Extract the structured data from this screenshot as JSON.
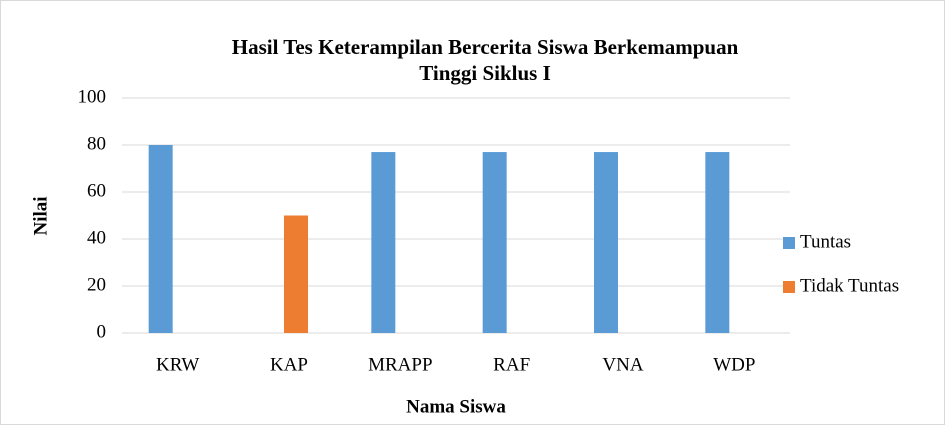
{
  "chart_data": {
    "type": "bar",
    "title": "Hasil Tes Keterampilan Bercerita Siswa Berkemampuan Tinggi Siklus I",
    "x_label": "Nama Siswa",
    "y_label": "Nilai",
    "categories": [
      "KRW",
      "KAP",
      "MRAPP",
      "RAF",
      "VNA",
      "WDP"
    ],
    "series": [
      {
        "name": "Tuntas",
        "color": "#5b9bd5",
        "values": [
          80,
          null,
          77,
          77,
          77,
          77
        ]
      },
      {
        "name": "Tidak Tuntas",
        "color": "#ed7d31",
        "values": [
          null,
          50,
          null,
          null,
          null,
          null
        ]
      }
    ],
    "ylim": [
      0,
      100
    ],
    "yticks": [
      0,
      20,
      40,
      60,
      80,
      100
    ],
    "grid": true,
    "legend": "right"
  }
}
